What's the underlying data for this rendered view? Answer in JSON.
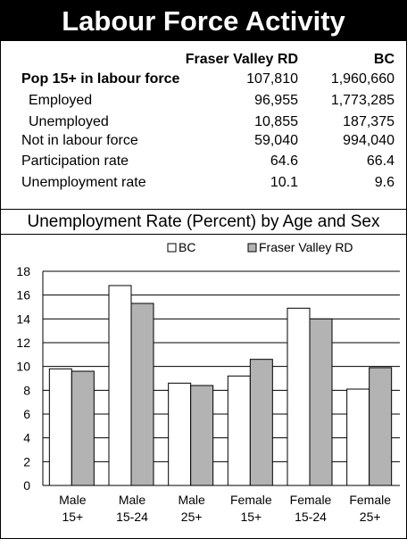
{
  "title": "Labour Force Activity",
  "table": {
    "headers": [
      "",
      "Fraser Valley RD",
      "BC"
    ],
    "rows": [
      {
        "label": "Pop 15+ in labour force",
        "fv": "107,810",
        "bc": "1,960,660",
        "bold": true
      },
      {
        "label": "Employed",
        "fv": "96,955",
        "bc": "1,773,285",
        "indent": true
      },
      {
        "label": "Unemployed",
        "fv": "10,855",
        "bc": "187,375",
        "indent": true
      },
      {
        "label": "Not in labour force",
        "fv": "59,040",
        "bc": "994,040"
      },
      {
        "label": "Participation rate",
        "fv": "64.6",
        "bc": "66.4"
      },
      {
        "label": "Unemployment rate",
        "fv": "10.1",
        "bc": "9.6"
      }
    ]
  },
  "chart_data": {
    "type": "bar",
    "title": "Unemployment Rate (Percent) by Age and Sex",
    "categories": [
      [
        "Male",
        "15+"
      ],
      [
        "Male",
        "15-24"
      ],
      [
        "Male",
        "25+"
      ],
      [
        "Female",
        "15+"
      ],
      [
        "Female",
        "15-24"
      ],
      [
        "Female",
        "25+"
      ]
    ],
    "series": [
      {
        "name": "BC",
        "values": [
          9.8,
          16.8,
          8.6,
          9.2,
          14.9,
          8.1
        ],
        "color": "#ffffff"
      },
      {
        "name": "Fraser Valley RD",
        "values": [
          9.6,
          15.3,
          8.4,
          10.6,
          14.0,
          9.9
        ],
        "color": "#b3b3b3"
      }
    ],
    "ylim": [
      0,
      18
    ],
    "yticks": [
      0,
      2,
      4,
      6,
      8,
      10,
      12,
      14,
      16,
      18
    ],
    "grid": true,
    "legend": "top"
  }
}
